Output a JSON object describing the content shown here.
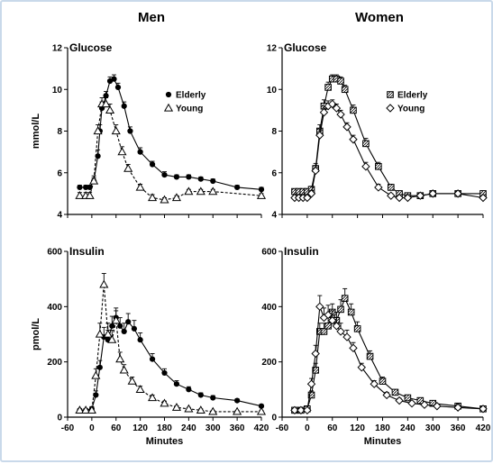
{
  "figure": {
    "column_titles": [
      "Men",
      "Women"
    ],
    "x_axis_label": "Minutes",
    "x_ticks": [
      "-60",
      "0",
      "60",
      "120",
      "180",
      "240",
      "300",
      "360",
      "420"
    ],
    "row_y_labels": [
      "mmol/L",
      "pmol/L"
    ]
  },
  "chart_data": [
    {
      "type": "line",
      "column": "Men",
      "panel_label": "Glucose",
      "ylabel": "mmol/L",
      "xlabel": "",
      "xlim": [
        -60,
        420
      ],
      "ylim": [
        4,
        12
      ],
      "yticks": [
        "4",
        "6",
        "8",
        "10",
        "12"
      ],
      "legend": "top-right",
      "series": [
        {
          "name": "Elderly",
          "marker": "filled-circle",
          "line": "solid",
          "x": [
            -30,
            -15,
            -5,
            5,
            15,
            20,
            25,
            35,
            45,
            55,
            65,
            80,
            95,
            120,
            150,
            180,
            210,
            240,
            270,
            300,
            360,
            420
          ],
          "y": [
            5.3,
            5.3,
            5.3,
            5.6,
            6.8,
            8.0,
            9.1,
            9.7,
            10.4,
            10.5,
            10.1,
            9.2,
            8.0,
            7.0,
            6.4,
            5.9,
            5.8,
            5.8,
            5.7,
            5.6,
            5.3,
            5.2
          ],
          "error": [
            0.1,
            0.1,
            0.1,
            0.15,
            0.3,
            0.3,
            0.3,
            0.2,
            0.2,
            0.2,
            0.2,
            0.2,
            0.2,
            0.2,
            0.15,
            0.15,
            0.1,
            0.1,
            0.1,
            0.1,
            0.1,
            0.1
          ]
        },
        {
          "name": "Young",
          "marker": "open-triangle",
          "line": "dashed",
          "x": [
            -30,
            -15,
            -5,
            5,
            15,
            25,
            35,
            45,
            60,
            75,
            90,
            120,
            150,
            180,
            210,
            240,
            270,
            300,
            420
          ],
          "y": [
            4.9,
            4.9,
            4.9,
            5.6,
            8.0,
            9.3,
            9.3,
            9.0,
            8.0,
            7.0,
            6.2,
            5.3,
            4.8,
            4.7,
            4.8,
            5.1,
            5.1,
            5.1,
            4.9
          ],
          "error": [
            0.15,
            0.15,
            0.15,
            0.25,
            0.3,
            0.3,
            0.3,
            0.3,
            0.3,
            0.25,
            0.2,
            0.15,
            0.15,
            0.1,
            0.1,
            0.1,
            0.1,
            0.1,
            0.1
          ]
        }
      ]
    },
    {
      "type": "line",
      "column": "Women",
      "panel_label": "Glucose",
      "ylabel": "",
      "xlabel": "",
      "xlim": [
        -60,
        420
      ],
      "ylim": [
        4,
        12
      ],
      "yticks": [
        "4",
        "6",
        "8",
        "10",
        "12"
      ],
      "legend": "top-right",
      "series": [
        {
          "name": "Elderly",
          "marker": "hatched-square",
          "line": "solid",
          "x": [
            -30,
            -20,
            -10,
            0,
            10,
            20,
            30,
            40,
            50,
            60,
            70,
            80,
            90,
            110,
            140,
            170,
            200,
            220,
            240,
            270,
            300,
            360,
            420
          ],
          "y": [
            5.1,
            5.1,
            5.1,
            5.1,
            5.2,
            6.2,
            8.0,
            9.2,
            10.1,
            10.5,
            10.5,
            10.4,
            10.0,
            9.0,
            7.4,
            6.3,
            5.3,
            5.0,
            4.9,
            4.9,
            5.0,
            5.0,
            5.0
          ],
          "error": [
            0.1,
            0.1,
            0.1,
            0.1,
            0.15,
            0.25,
            0.3,
            0.3,
            0.25,
            0.2,
            0.2,
            0.2,
            0.2,
            0.25,
            0.25,
            0.2,
            0.15,
            0.1,
            0.1,
            0.1,
            0.1,
            0.1,
            0.1
          ]
        },
        {
          "name": "Young",
          "marker": "open-diamond",
          "line": "solid",
          "x": [
            -30,
            -20,
            -10,
            0,
            10,
            20,
            30,
            40,
            50,
            60,
            70,
            80,
            95,
            110,
            140,
            170,
            200,
            220,
            240,
            270,
            300,
            360,
            420
          ],
          "y": [
            4.8,
            4.8,
            4.8,
            4.8,
            5.0,
            6.1,
            7.8,
            8.9,
            9.2,
            9.3,
            9.1,
            8.8,
            8.2,
            7.6,
            6.3,
            5.3,
            4.9,
            4.8,
            4.8,
            4.9,
            5.0,
            5.0,
            4.8
          ],
          "error": [
            0.1,
            0.1,
            0.1,
            0.1,
            0.15,
            0.25,
            0.3,
            0.3,
            0.25,
            0.2,
            0.2,
            0.2,
            0.2,
            0.2,
            0.2,
            0.15,
            0.1,
            0.1,
            0.1,
            0.1,
            0.1,
            0.1,
            0.1
          ]
        }
      ]
    },
    {
      "type": "line",
      "column": "Men",
      "panel_label": "Insulin",
      "ylabel": "pmol/L",
      "xlabel": "Minutes",
      "xlim": [
        -60,
        420
      ],
      "ylim": [
        0,
        600
      ],
      "yticks": [
        "0",
        "200",
        "400",
        "600"
      ],
      "series": [
        {
          "name": "Elderly",
          "marker": "filled-circle",
          "line": "solid",
          "x": [
            -30,
            -15,
            0,
            10,
            20,
            30,
            40,
            50,
            60,
            70,
            80,
            90,
            105,
            120,
            150,
            180,
            210,
            240,
            270,
            300,
            360,
            420
          ],
          "y": [
            25,
            25,
            30,
            80,
            180,
            290,
            280,
            330,
            360,
            330,
            310,
            345,
            320,
            280,
            210,
            160,
            120,
            100,
            80,
            70,
            60,
            40
          ],
          "error": [
            5,
            5,
            8,
            15,
            25,
            35,
            35,
            35,
            35,
            30,
            30,
            30,
            30,
            25,
            20,
            15,
            12,
            10,
            8,
            8,
            6,
            6
          ]
        },
        {
          "name": "Young",
          "marker": "open-triangle",
          "line": "dashed",
          "x": [
            -30,
            -15,
            0,
            10,
            20,
            30,
            40,
            50,
            60,
            70,
            80,
            100,
            120,
            150,
            180,
            210,
            240,
            270,
            300,
            360,
            420
          ],
          "y": [
            25,
            25,
            25,
            150,
            300,
            480,
            300,
            280,
            350,
            210,
            170,
            130,
            100,
            70,
            50,
            35,
            30,
            25,
            20,
            20,
            20
          ],
          "error": [
            5,
            5,
            5,
            25,
            40,
            40,
            40,
            35,
            35,
            25,
            20,
            15,
            12,
            10,
            8,
            6,
            5,
            5,
            4,
            4,
            4
          ]
        }
      ]
    },
    {
      "type": "line",
      "column": "Women",
      "panel_label": "Insulin",
      "ylabel": "",
      "xlabel": "Minutes",
      "xlim": [
        -60,
        420
      ],
      "ylim": [
        0,
        600
      ],
      "yticks": [
        "0",
        "200",
        "400",
        "600"
      ],
      "series": [
        {
          "name": "Elderly",
          "marker": "hatched-square",
          "line": "solid",
          "x": [
            -30,
            -15,
            0,
            10,
            20,
            30,
            40,
            50,
            60,
            70,
            80,
            90,
            105,
            120,
            150,
            180,
            210,
            240,
            270,
            300,
            360,
            420
          ],
          "y": [
            25,
            25,
            30,
            80,
            170,
            310,
            310,
            330,
            380,
            350,
            390,
            430,
            380,
            320,
            220,
            130,
            90,
            70,
            60,
            50,
            40,
            30
          ],
          "error": [
            5,
            5,
            8,
            15,
            25,
            30,
            30,
            30,
            30,
            30,
            35,
            35,
            30,
            25,
            20,
            15,
            10,
            8,
            6,
            5,
            5,
            5
          ]
        },
        {
          "name": "Young",
          "marker": "open-diamond",
          "line": "solid",
          "x": [
            -30,
            -15,
            0,
            10,
            20,
            30,
            40,
            50,
            60,
            70,
            80,
            95,
            110,
            130,
            160,
            190,
            220,
            250,
            280,
            310,
            360,
            420
          ],
          "y": [
            25,
            25,
            25,
            120,
            230,
            400,
            360,
            370,
            350,
            330,
            310,
            290,
            250,
            180,
            120,
            80,
            60,
            50,
            45,
            40,
            35,
            30
          ],
          "error": [
            5,
            5,
            5,
            20,
            30,
            40,
            35,
            35,
            35,
            30,
            30,
            25,
            20,
            15,
            12,
            10,
            8,
            6,
            5,
            5,
            5,
            5
          ]
        }
      ]
    }
  ]
}
